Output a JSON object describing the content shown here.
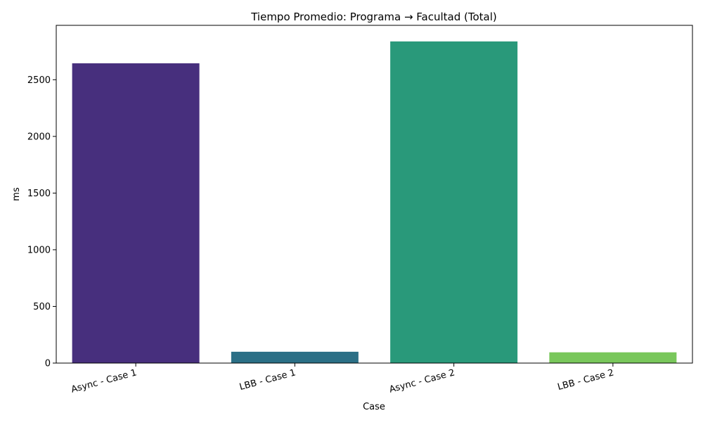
{
  "chart_data": {
    "type": "bar",
    "title": "Tiempo Promedio: Programa → Facultad (Total)",
    "xlabel": "Case",
    "ylabel": "ms",
    "categories": [
      "Async - Case 1",
      "LBB - Case 1",
      "Async - Case 2",
      "LBB - Case 2"
    ],
    "values": [
      2645,
      100,
      2838,
      95
    ],
    "colors": [
      "#472f7d",
      "#2b6f86",
      "#29997a",
      "#79c75b"
    ],
    "yticks": [
      0,
      500,
      1000,
      1500,
      2000,
      2500
    ],
    "ylim": [
      0,
      2980
    ],
    "grid": false,
    "legend": "none"
  }
}
